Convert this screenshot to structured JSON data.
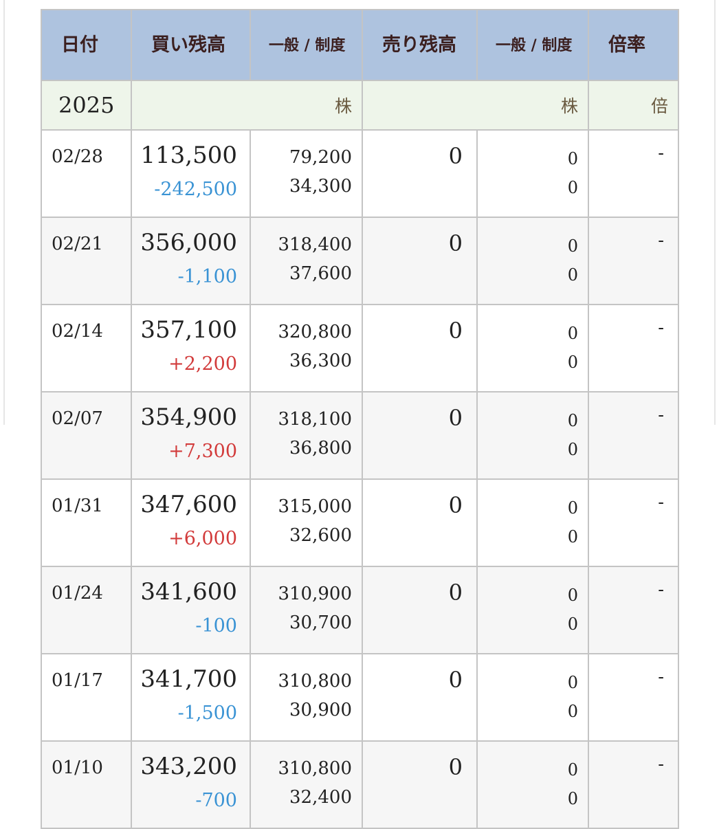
{
  "headers": {
    "date": "日付",
    "buy": "買い残高",
    "buy_sub": "一般 / 制度",
    "sell": "売り残高",
    "sell_sub": "一般 / 制度",
    "ratio": "倍率"
  },
  "units": {
    "year": "2025",
    "buy_unit": "株",
    "sell_unit": "株",
    "ratio_unit": "倍"
  },
  "rows": [
    {
      "date": "02/28",
      "buy": "113,500",
      "change": "-242,500",
      "dir": "neg",
      "general": "79,200",
      "system": "34,300",
      "sell": "0",
      "sell_general": "0",
      "sell_system": "0",
      "ratio": "-"
    },
    {
      "date": "02/21",
      "buy": "356,000",
      "change": "-1,100",
      "dir": "neg",
      "general": "318,400",
      "system": "37,600",
      "sell": "0",
      "sell_general": "0",
      "sell_system": "0",
      "ratio": "-"
    },
    {
      "date": "02/14",
      "buy": "357,100",
      "change": "+2,200",
      "dir": "pos",
      "general": "320,800",
      "system": "36,300",
      "sell": "0",
      "sell_general": "0",
      "sell_system": "0",
      "ratio": "-"
    },
    {
      "date": "02/07",
      "buy": "354,900",
      "change": "+7,300",
      "dir": "pos",
      "general": "318,100",
      "system": "36,800",
      "sell": "0",
      "sell_general": "0",
      "sell_system": "0",
      "ratio": "-"
    },
    {
      "date": "01/31",
      "buy": "347,600",
      "change": "+6,000",
      "dir": "pos",
      "general": "315,000",
      "system": "32,600",
      "sell": "0",
      "sell_general": "0",
      "sell_system": "0",
      "ratio": "-"
    },
    {
      "date": "01/24",
      "buy": "341,600",
      "change": "-100",
      "dir": "neg",
      "general": "310,900",
      "system": "30,700",
      "sell": "0",
      "sell_general": "0",
      "sell_system": "0",
      "ratio": "-"
    },
    {
      "date": "01/17",
      "buy": "341,700",
      "change": "-1,500",
      "dir": "neg",
      "general": "310,800",
      "system": "30,900",
      "sell": "0",
      "sell_general": "0",
      "sell_system": "0",
      "ratio": "-"
    },
    {
      "date": "01/10",
      "buy": "343,200",
      "change": "-700",
      "dir": "neg",
      "general": "310,800",
      "system": "32,400",
      "sell": "0",
      "sell_general": "0",
      "sell_system": "0",
      "ratio": "-"
    }
  ],
  "colors": {
    "header_bg": "#aec3df",
    "unit_bg": "#eef5ea",
    "negative": "#3a93d4",
    "positive": "#d23b3b"
  }
}
